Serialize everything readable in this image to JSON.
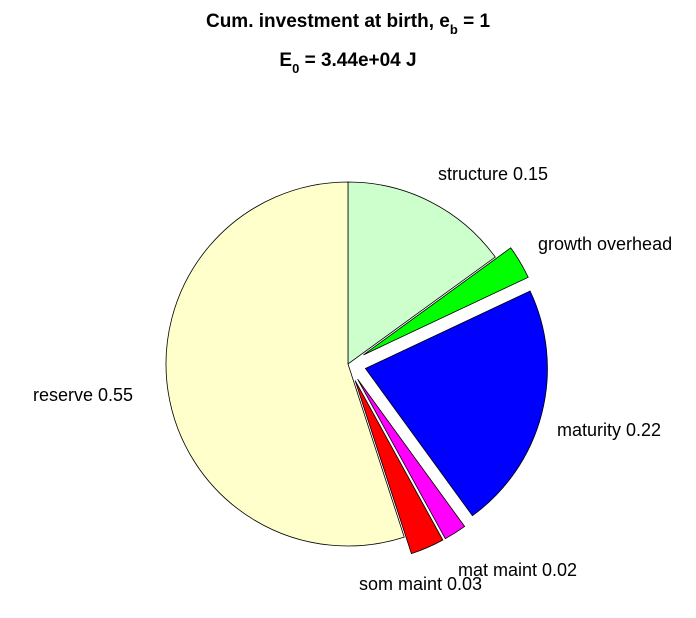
{
  "chart_data": {
    "type": "pie",
    "title_line1": {
      "main": "Cum. investment at birth, e",
      "subscript": "b",
      "tail": " = 1"
    },
    "title_line2": {
      "main": "E",
      "subscript": "0",
      "tail": " = 3.44e+04 J"
    },
    "slices": [
      {
        "name": "structure",
        "label": "structure 0.15",
        "value": 0.15,
        "color": "#CCFFCC",
        "exploded": false
      },
      {
        "name": "growth-overhead",
        "label": "growth overhead",
        "value": 0.03,
        "color": "#00FF00",
        "exploded": true
      },
      {
        "name": "maturity",
        "label": "maturity 0.22",
        "value": 0.22,
        "color": "#0000FF",
        "exploded": true
      },
      {
        "name": "mat-maint",
        "label": "mat maint 0.02",
        "value": 0.02,
        "color": "#FF00FF",
        "exploded": true
      },
      {
        "name": "som-maint",
        "label": "som maint 0.03",
        "value": 0.03,
        "color": "#FF0000",
        "exploded": true
      },
      {
        "name": "reserve",
        "label": "reserve 0.55",
        "value": 0.55,
        "color": "#FFFFCC",
        "exploded": false
      }
    ]
  }
}
